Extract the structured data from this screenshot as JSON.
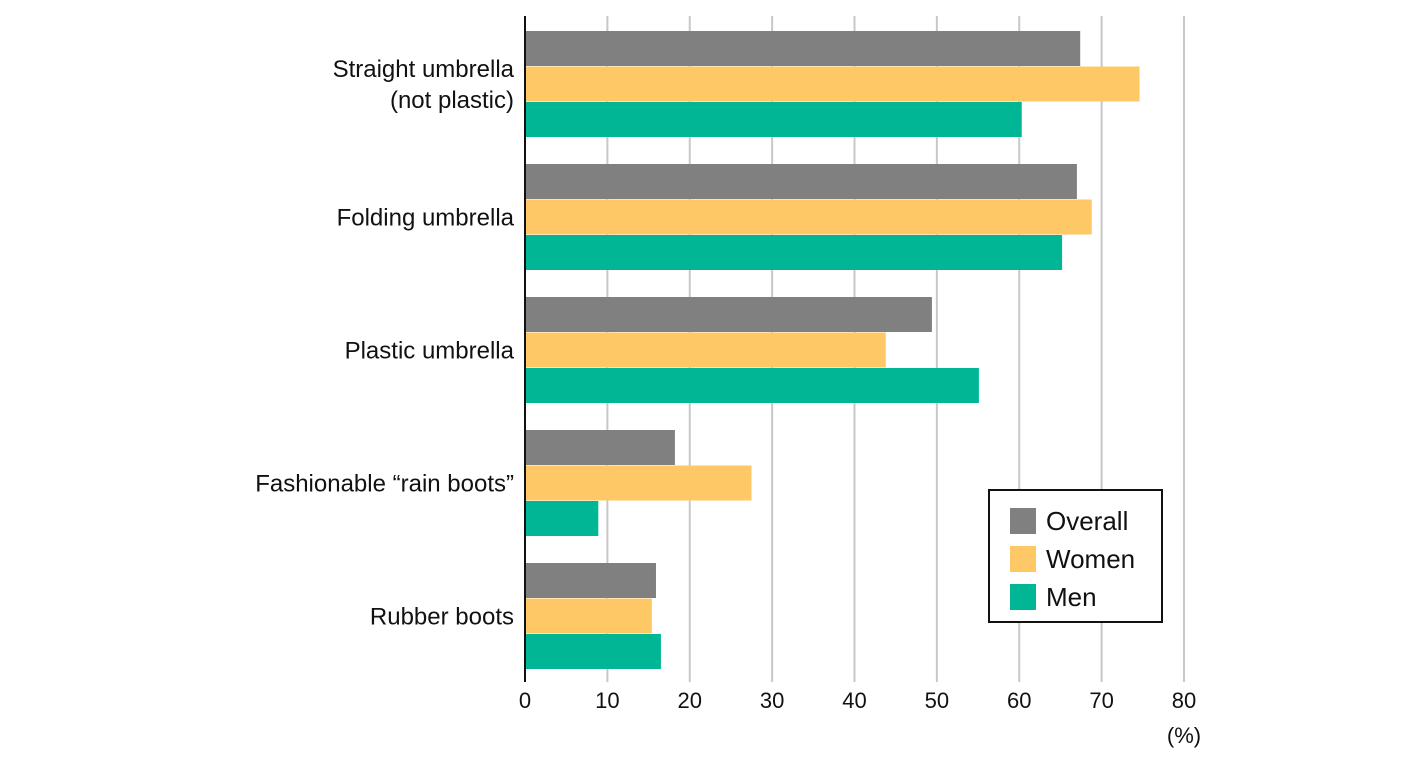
{
  "chart_data": {
    "type": "bar",
    "orientation": "horizontal",
    "categories": [
      [
        "Straight umbrella",
        "(not plastic)"
      ],
      [
        "Folding umbrella"
      ],
      [
        "Plastic umbrella"
      ],
      [
        "Fashionable “rain boots”"
      ],
      [
        "Rubber boots"
      ]
    ],
    "series": [
      {
        "name": "Overall",
        "color": "#808080",
        "values": [
          67.4,
          67.0,
          49.4,
          18.2,
          15.9
        ]
      },
      {
        "name": "Women",
        "color": "#ffc866",
        "values": [
          74.6,
          68.8,
          43.8,
          27.5,
          15.4
        ]
      },
      {
        "name": "Men",
        "color": "#00b695",
        "values": [
          60.3,
          65.2,
          55.1,
          8.9,
          16.5
        ]
      }
    ],
    "xlim": [
      0,
      80
    ],
    "xticks": [
      0,
      10,
      20,
      30,
      40,
      50,
      60,
      70,
      80
    ],
    "xlabel": "(%)",
    "grid": "vertical",
    "legend_position": "bottom-right"
  }
}
